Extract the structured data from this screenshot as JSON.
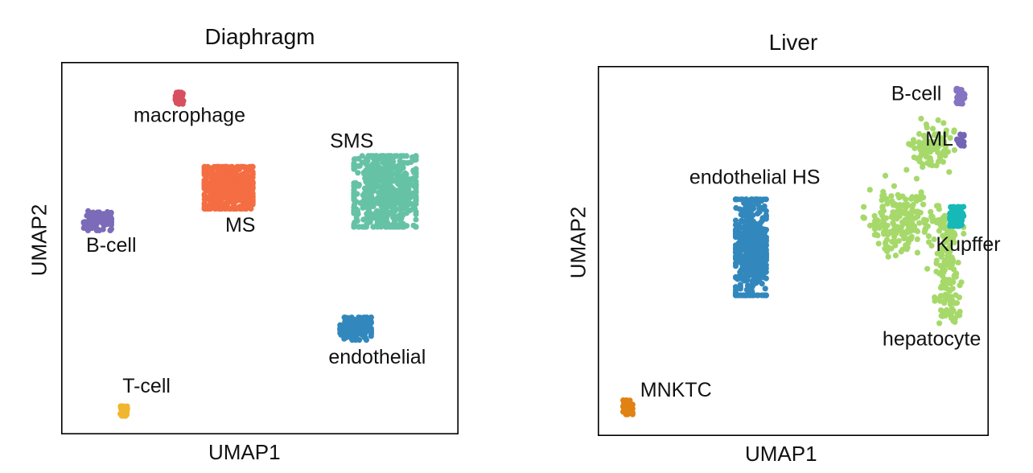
{
  "chart_data": [
    {
      "type": "scatter",
      "title": "Diaphragm",
      "xlabel": "UMAP1",
      "ylabel": "UMAP2",
      "grid": false,
      "xlim": [
        0,
        100
      ],
      "ylim": [
        0,
        100
      ],
      "clusters": [
        {
          "name": "macrophage",
          "color": "#d6505f",
          "center": [
            29.5,
            91
          ],
          "spread": [
            1.2,
            1.8
          ],
          "n": 40,
          "label_pos": [
            32,
            84.5
          ]
        },
        {
          "name": "SMS",
          "color": "#66c2a5",
          "center": [
            82,
            65.5
          ],
          "spread": [
            9,
            11
          ],
          "n": 600,
          "label_pos": [
            73.5,
            77.5
          ]
        },
        {
          "name": "MS",
          "color": "#f46d43",
          "center": [
            42,
            66.5
          ],
          "spread": [
            7,
            6.5
          ],
          "n": 500,
          "label_pos": [
            45,
            54.5
          ]
        },
        {
          "name": "B-cell",
          "color": "#7c6bb8",
          "center": [
            8.5,
            57.5
          ],
          "spread": [
            4,
            3
          ],
          "n": 80,
          "label_pos": [
            12,
            49
          ]
        },
        {
          "name": "endothelial",
          "color": "#3288bd",
          "center": [
            74.5,
            28
          ],
          "spread": [
            4.5,
            3.5
          ],
          "n": 150,
          "label_pos": [
            80,
            18.5
          ]
        },
        {
          "name": "T-cell",
          "color": "#f0b62f",
          "center": [
            15.2,
            5.5
          ],
          "spread": [
            1,
            1.5
          ],
          "n": 25,
          "label_pos": [
            21,
            10.5
          ]
        }
      ]
    },
    {
      "type": "scatter",
      "title": "Liver",
      "xlabel": "UMAP1",
      "ylabel": "UMAP2",
      "grid": false,
      "xlim": [
        0,
        100
      ],
      "ylim": [
        0,
        100
      ],
      "clusters": [
        {
          "name": "B-cell",
          "color": "#8474c2",
          "center": [
            93.5,
            92.5
          ],
          "spread": [
            1.2,
            2.4
          ],
          "n": 40,
          "label_pos": [
            82,
            91.5
          ]
        },
        {
          "name": "ML",
          "color": "#7364b4",
          "center": [
            93.5,
            80.5
          ],
          "spread": [
            1,
            1.8
          ],
          "n": 25,
          "label_pos": [
            88,
            79
          ]
        },
        {
          "name": "endothelial HS",
          "color": "#3288bd",
          "center": [
            39,
            51
          ],
          "spread": [
            4.5,
            15
          ],
          "n": 450,
          "label_pos": [
            40,
            68.5
          ]
        },
        {
          "name": "hepatocyte",
          "color": "#a6d96a",
          "center": [
            79,
            55
          ],
          "spread": [
            10,
            20
          ],
          "n": 450,
          "label_pos": [
            86,
            24
          ]
        },
        {
          "name": "Kupffer",
          "color": "#17b8b8",
          "center": [
            92.5,
            59.5
          ],
          "spread": [
            2,
            3
          ],
          "n": 70,
          "label_pos": [
            95.5,
            50
          ]
        },
        {
          "name": "MNKTC",
          "color": "#e08214",
          "center": [
            7,
            7
          ],
          "spread": [
            1.4,
            2.2
          ],
          "n": 40,
          "label_pos": [
            19.5,
            10
          ]
        }
      ]
    }
  ]
}
